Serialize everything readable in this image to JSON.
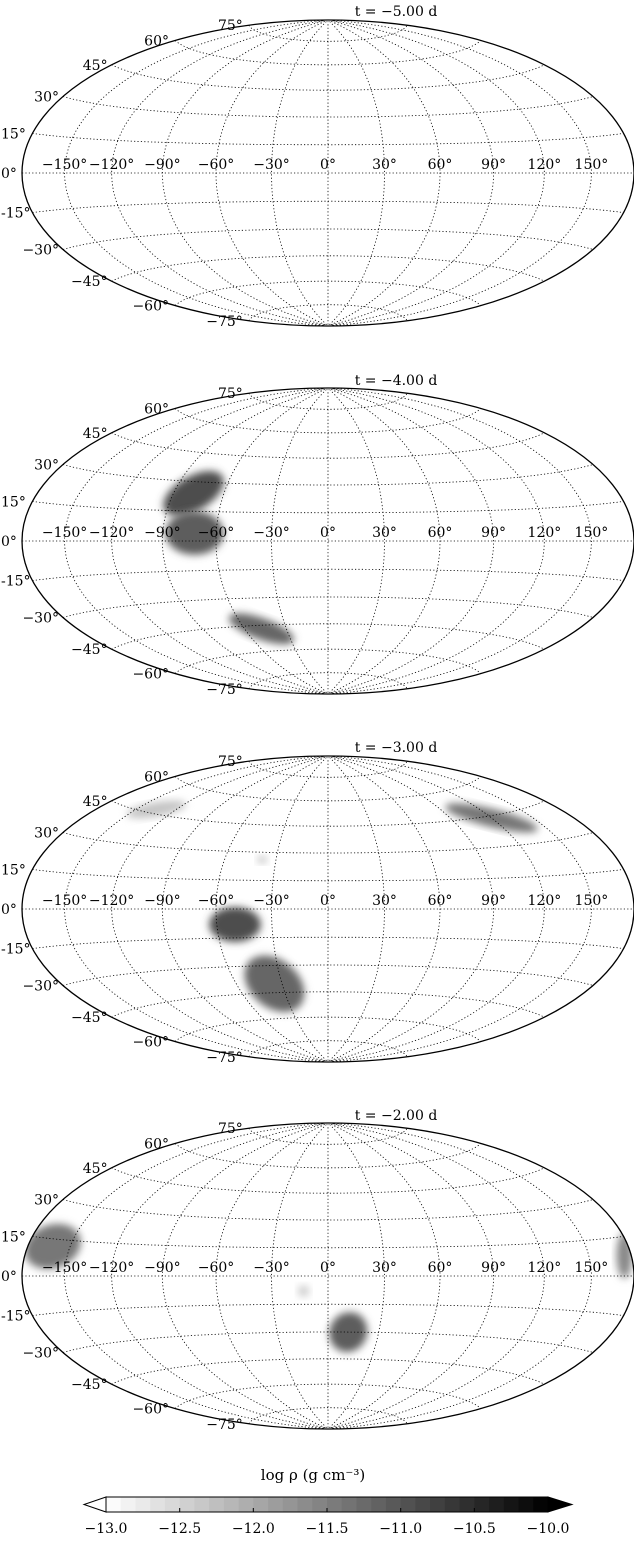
{
  "chart_data": {
    "type": "heatmap",
    "projection": "hammer",
    "grid": true,
    "lon_ticks": [
      "−150°",
      "−120°",
      "−90°",
      "−60°",
      "−30°",
      "0°",
      "30°",
      "60°",
      "90°",
      "120°",
      "150°"
    ],
    "lon_tick_values": [
      -150,
      -120,
      -90,
      -60,
      -30,
      0,
      30,
      60,
      90,
      120,
      150
    ],
    "lat_ticks": [
      "75°",
      "60°",
      "45°",
      "30°",
      "15°",
      "0°",
      "-15°",
      "−30°",
      "−45°",
      "−60°",
      "−75°"
    ],
    "lat_tick_values": [
      75,
      60,
      45,
      30,
      15,
      0,
      -15,
      -30,
      -45,
      -60,
      -75
    ],
    "panels": [
      {
        "title": "t = −5.00 d",
        "blobs": []
      },
      {
        "title": "t = −4.00 d",
        "blobs": [
          {
            "lon": -78,
            "lat": 24,
            "dlon": 20,
            "dlat": 9,
            "rot": -30,
            "logrho": -10.9
          },
          {
            "lon": -72,
            "lat": 4,
            "dlon": 16,
            "dlat": 11,
            "rot": 0,
            "logrho": -11.1
          },
          {
            "lon": -48,
            "lat": -47,
            "dlon": 25,
            "dlat": 6,
            "rot": 20,
            "logrho": -11.2
          }
        ]
      },
      {
        "title": "t = −3.00 d",
        "blobs": [
          {
            "lon": 120,
            "lat": 44,
            "dlon": 48,
            "dlat": 5,
            "rot": 14,
            "logrho": -11.4
          },
          {
            "lon": -135,
            "lat": 47,
            "dlon": 28,
            "dlat": 4,
            "rot": -10,
            "logrho": -12.3
          },
          {
            "lon": -38,
            "lat": 26,
            "dlon": 3,
            "dlat": 2,
            "rot": 0,
            "logrho": -12.3
          },
          {
            "lon": -50,
            "lat": -8,
            "dlon": 14,
            "dlat": 9,
            "rot": 0,
            "logrho": -10.9
          },
          {
            "lon": -35,
            "lat": -40,
            "dlon": 22,
            "dlat": 13,
            "rot": 40,
            "logrho": -11.2
          }
        ]
      },
      {
        "title": "t = −2.00 d",
        "blobs": [
          {
            "lon": -162,
            "lat": 12,
            "dlon": 20,
            "dlat": 9,
            "rot": -20,
            "logrho": -11.4
          },
          {
            "lon": 175,
            "lat": 8,
            "dlon": 6,
            "dlat": 9,
            "rot": 0,
            "logrho": -11.6
          },
          {
            "lon": -13,
            "lat": -8,
            "dlon": 3,
            "dlat": 3,
            "rot": 0,
            "logrho": -12.4
          },
          {
            "lon": 12,
            "lat": -30,
            "dlon": 11,
            "dlat": 11,
            "rot": 30,
            "logrho": -11.1
          }
        ]
      }
    ],
    "colorbar": {
      "label": "log ρ (g cm⁻³)",
      "min": -13.0,
      "max": -10.0,
      "ticks": [
        "−13.0",
        "−12.5",
        "−12.0",
        "−11.5",
        "−11.0",
        "−10.5",
        "−10.0"
      ],
      "tick_values": [
        -13.0,
        -12.5,
        -12.0,
        -11.5,
        -11.0,
        -10.5,
        -10.0
      ],
      "extend": "both",
      "cmap": "gray_r"
    }
  }
}
